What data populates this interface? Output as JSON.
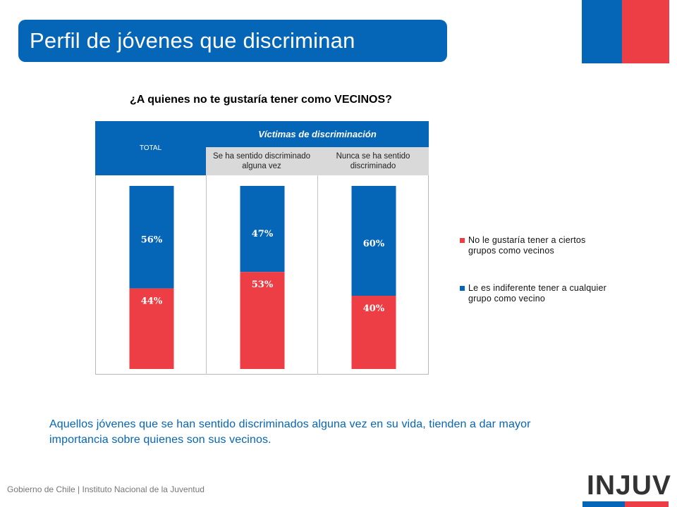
{
  "header": {
    "title": "Perfil de jóvenes que discriminan"
  },
  "chart_data": {
    "type": "bar",
    "stacked": true,
    "percent_stacked": true,
    "title": "¿A quienes no te gustaría tener como VECINOS?",
    "table_header": {
      "total": "TOTAL",
      "group": "Víctimas de discriminación"
    },
    "categories": [
      "TOTAL",
      "Se ha sentido discriminado alguna vez",
      "Nunca se ha sentido discriminado"
    ],
    "column_headers": [
      "Se ha sentido discriminado alguna vez",
      "Nunca se ha sentido discriminado"
    ],
    "series": [
      {
        "name": "No le gustaría tener a ciertos grupos como vecinos",
        "values": [
          44,
          53,
          40
        ],
        "labels": [
          "44%",
          "53%",
          "40%"
        ],
        "color": "#ee3e45"
      },
      {
        "name": "Le es indiferente tener a cualquier grupo como vecino",
        "values": [
          56,
          47,
          60
        ],
        "labels": [
          "56%",
          "47%",
          "60%"
        ],
        "color": "#0565b7"
      }
    ],
    "ylim": [
      0,
      100
    ],
    "legend_position": "right",
    "grid": false
  },
  "note": "Aquellos jóvenes que se han sentido discriminados alguna vez en su vida, tienden a dar mayor importancia sobre quienes son sus vecinos.",
  "footer": "Gobierno de Chile | Instituto Nacional de la Juventud",
  "logo": "INJUV",
  "colors": {
    "blue": "#0565b7",
    "red": "#ee3e45",
    "header_gray": "#d9d9d9"
  }
}
